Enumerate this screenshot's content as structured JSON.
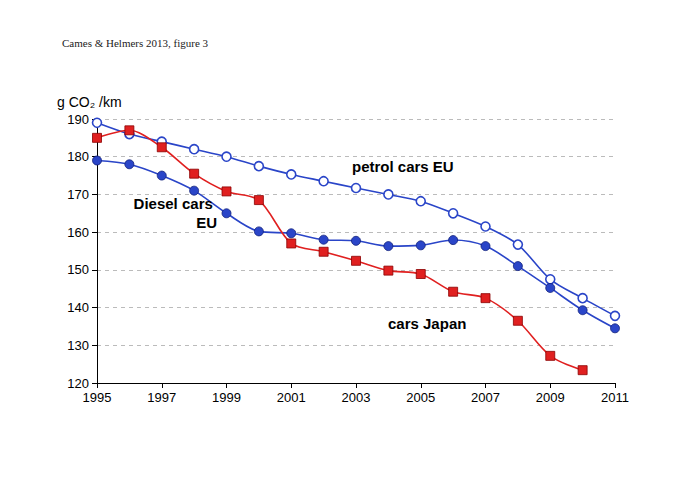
{
  "chart_data": {
    "type": "line",
    "title": "Cames & Helmers 2013, figure 3",
    "y_label": "g CO₂ /km",
    "x": [
      1995,
      1996,
      1997,
      1998,
      1999,
      2000,
      2001,
      2002,
      2003,
      2004,
      2005,
      2006,
      2007,
      2008,
      2009,
      2010,
      2011
    ],
    "series": [
      {
        "name": "petrol cars EU",
        "color": "#2a45c8",
        "marker": "open_circle",
        "values": [
          189,
          186,
          184,
          182,
          180,
          177.5,
          175.3,
          173.5,
          171.7,
          170,
          168.2,
          165,
          161.5,
          156.7,
          147.5,
          142.5,
          137.8
        ]
      },
      {
        "name": "Diesel cars EU",
        "color": "#2a45c8",
        "marker": "circle",
        "values": [
          179,
          178,
          175,
          171,
          165,
          160.2,
          159.7,
          158,
          157.7,
          156.3,
          156.5,
          157.9,
          156.3,
          151,
          145.2,
          139.3,
          134.5
        ]
      },
      {
        "name": "cars Japan",
        "color": "#e02020",
        "marker": "square",
        "values": [
          185,
          187,
          182.5,
          175.5,
          170.8,
          168.5,
          157,
          154.8,
          152.4,
          149.8,
          148.9,
          144.2,
          142.5,
          136.5,
          127.2,
          123.4,
          null
        ]
      }
    ],
    "xlim": [
      1995,
      2011
    ],
    "xticks": [
      1995,
      1997,
      1999,
      2001,
      2003,
      2005,
      2007,
      2009,
      2011
    ],
    "ylim": [
      120,
      190
    ],
    "yticks": [
      120,
      130,
      140,
      150,
      160,
      170,
      180,
      190
    ],
    "grid": true
  }
}
